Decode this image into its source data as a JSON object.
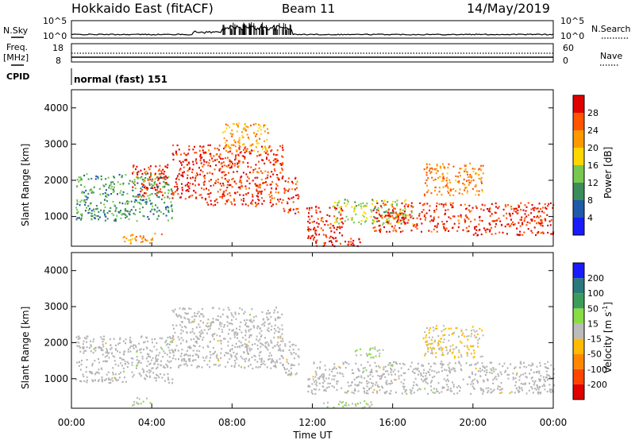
{
  "header": {
    "station": "Hokkaido East (fitACF)",
    "beam": "Beam 11",
    "date": "14/May/2019"
  },
  "top_panels": {
    "nsky_label": "N.Sky",
    "nsearch_label": "N.Search",
    "noise_ticks": [
      "10^5",
      "10^0"
    ],
    "freq_label": "Freq.",
    "freq_unit": "[MHz]",
    "freq_ticks": [
      "18",
      "8"
    ],
    "nave_label": "Nave",
    "nave_ticks": [
      "60",
      "0"
    ],
    "cpid_label": "CPID",
    "cpid_value": "normal (fast) 151"
  },
  "x_axis": {
    "label": "Time UT",
    "ticks": [
      "00:00",
      "04:00",
      "08:00",
      "12:00",
      "16:00",
      "20:00",
      "00:00"
    ]
  },
  "colors": {
    "power_scale": [
      "#1a1aff",
      "#1e5aa8",
      "#3c8c5a",
      "#78c850",
      "#ffd700",
      "#ff9900",
      "#ff5500",
      "#e00000"
    ],
    "velocity_scale": [
      "#e00000",
      "#ff4400",
      "#ff8800",
      "#ffbb00",
      "#bbbbbb",
      "#88dd44",
      "#3c9c5a",
      "#2a7a7a",
      "#1a1aff"
    ],
    "ground_scatter": "#b4b4b4"
  },
  "chart_data": [
    {
      "type": "heatmap",
      "name_key": "power",
      "ylabel": "Slant Range [km]",
      "yticks": [
        1000,
        2000,
        3000,
        4000
      ],
      "ylim": [
        180,
        4500
      ],
      "xlim_hours": [
        0,
        24
      ],
      "colorbar_label": "Power [dB]",
      "colorbar_ticks": [
        "28",
        "24",
        "20",
        "16",
        "12",
        "8",
        "4"
      ],
      "colorbar_range": [
        0,
        30
      ],
      "regions": [
        {
          "t0": 0.2,
          "t1": 5.0,
          "r0": 900,
          "r1": 2200,
          "level": 10
        },
        {
          "t0": 2.5,
          "t1": 4.5,
          "r0": 280,
          "r1": 550,
          "level": 22
        },
        {
          "t0": 3.0,
          "t1": 4.8,
          "r0": 1550,
          "r1": 2450,
          "level": 26
        },
        {
          "t0": 5.0,
          "t1": 6.6,
          "r0": 1500,
          "r1": 3000,
          "level": 27
        },
        {
          "t0": 6.5,
          "t1": 10.5,
          "r0": 1300,
          "r1": 3000,
          "level": 26
        },
        {
          "t0": 7.5,
          "t1": 9.8,
          "r0": 2800,
          "r1": 3600,
          "level": 20
        },
        {
          "t0": 10.5,
          "t1": 11.3,
          "r0": 1100,
          "r1": 2100,
          "level": 26
        },
        {
          "t0": 11.7,
          "t1": 13.5,
          "r0": 400,
          "r1": 1300,
          "level": 28
        },
        {
          "t0": 12.0,
          "t1": 14.5,
          "r0": 200,
          "r1": 450,
          "level": 28
        },
        {
          "t0": 13.0,
          "t1": 17.0,
          "r0": 800,
          "r1": 1500,
          "level": 14
        },
        {
          "t0": 15.0,
          "t1": 20.0,
          "r0": 600,
          "r1": 1400,
          "level": 26
        },
        {
          "t0": 17.5,
          "t1": 20.5,
          "r0": 1600,
          "r1": 2500,
          "level": 22
        },
        {
          "t0": 20.0,
          "t1": 24.0,
          "r0": 500,
          "r1": 1400,
          "level": 27
        }
      ]
    },
    {
      "type": "heatmap",
      "name_key": "velocity",
      "ylabel": "Slant Range [km]",
      "yticks": [
        1000,
        2000,
        3000,
        4000
      ],
      "ylim": [
        180,
        4500
      ],
      "xlim_hours": [
        0,
        24
      ],
      "colorbar_label": "Velocity [m s",
      "colorbar_unit_sup": "-1",
      "colorbar_label_end": "]",
      "colorbar_ticks": [
        "200",
        "100",
        "50",
        "15",
        "-15",
        "-50",
        "-100",
        "-200"
      ],
      "regions": [
        {
          "t0": 0.2,
          "t1": 5.0,
          "r0": 900,
          "r1": 2200,
          "level": 0
        },
        {
          "t0": 5.0,
          "t1": 10.5,
          "r0": 1300,
          "r1": 3000,
          "level": 0
        },
        {
          "t0": 10.5,
          "t1": 11.3,
          "r0": 1100,
          "r1": 2100,
          "level": 0
        },
        {
          "t0": 11.7,
          "t1": 24.0,
          "r0": 600,
          "r1": 1500,
          "level": 0
        },
        {
          "t0": 3.0,
          "t1": 4.0,
          "r0": 280,
          "r1": 500,
          "level": 30
        },
        {
          "t0": 12.5,
          "t1": 15.0,
          "r0": 200,
          "r1": 400,
          "level": 30
        },
        {
          "t0": 14.0,
          "t1": 15.5,
          "r0": 1600,
          "r1": 1900,
          "level": 30
        },
        {
          "t0": 17.5,
          "t1": 20.5,
          "r0": 1600,
          "r1": 2500,
          "level": -20
        }
      ]
    }
  ]
}
